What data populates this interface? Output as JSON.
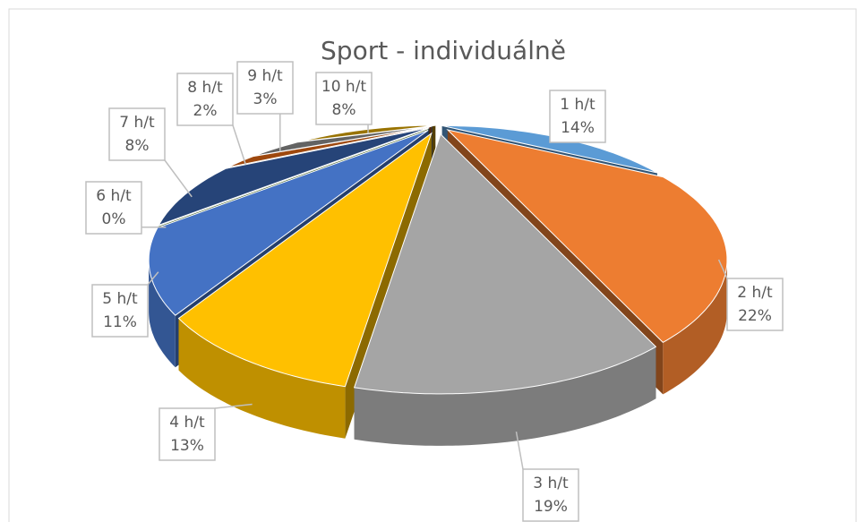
{
  "chart_data": {
    "type": "pie3d",
    "title": "Sport - individuálně",
    "categories": [
      "1 h/t",
      "2 h/t",
      "3 h/t",
      "4 h/t",
      "5 h/t",
      "6 h/t",
      "7 h/t",
      "8 h/t",
      "9 h/t",
      "10 h/t"
    ],
    "values": [
      14,
      22,
      19,
      13,
      11,
      0,
      8,
      2,
      3,
      8
    ],
    "value_labels": [
      "14%",
      "22%",
      "19%",
      "13%",
      "11%",
      "0%",
      "8%",
      "2%",
      "3%",
      "8%"
    ],
    "colors": [
      "#5b9bd5",
      "#ed7d31",
      "#a5a5a5",
      "#ffc000",
      "#4472c4",
      "#70ad47",
      "#264478",
      "#9e480e",
      "#636363",
      "#997300"
    ]
  }
}
